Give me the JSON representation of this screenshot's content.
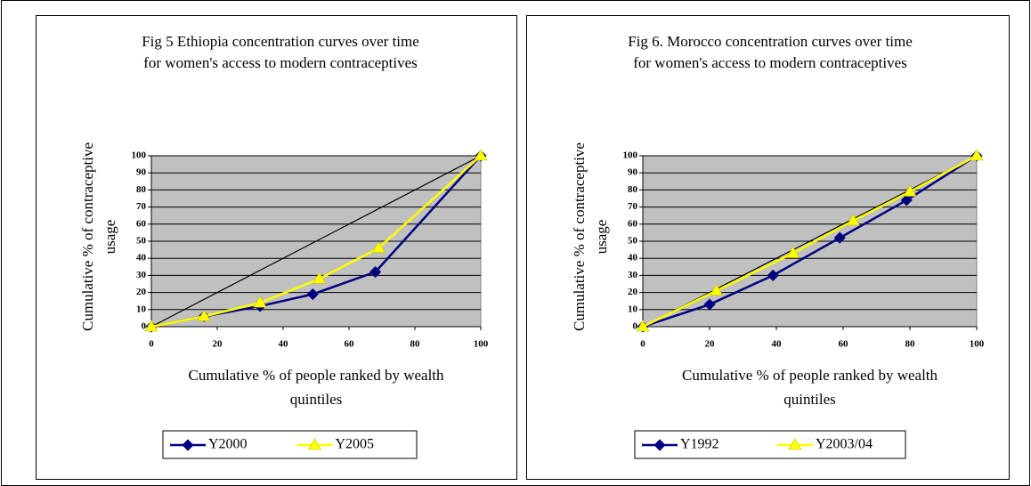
{
  "chart_data": [
    {
      "type": "line",
      "title": [
        "Fig 5 Ethiopia concentration curves over time",
        "for women's access to modern contraceptives"
      ],
      "x_label": [
        "Cumulative % of people ranked by wealth",
        "quintiles"
      ],
      "y_label": [
        "Cumulative % of contraceptive",
        "usage"
      ],
      "xlim": [
        0,
        100
      ],
      "ylim": [
        0,
        100
      ],
      "xticks": [
        0,
        20,
        40,
        60,
        80,
        100
      ],
      "yticks": [
        0,
        10,
        20,
        30,
        40,
        50,
        60,
        70,
        80,
        90,
        100
      ],
      "grid": true,
      "equality_line": true,
      "legend": "bottom",
      "series": [
        {
          "name": "Y2000",
          "color": "#000080",
          "marker": "diamond",
          "x": [
            0,
            16,
            33,
            49,
            68,
            100
          ],
          "values": [
            0,
            6,
            12,
            19,
            32,
            100
          ]
        },
        {
          "name": "Y2005",
          "color": "#ffff00",
          "marker": "triangle",
          "x": [
            0,
            16,
            33,
            51,
            69,
            100
          ],
          "values": [
            0,
            6,
            14,
            28,
            46,
            100
          ]
        }
      ]
    },
    {
      "type": "line",
      "title": [
        "Fig 6. Morocco concentration curves over time",
        "for women's access to modern contraceptives"
      ],
      "x_label": [
        "Cumulative % of people ranked by wealth",
        "quintiles"
      ],
      "y_label": [
        "Cumulative % of contraceptive",
        "usage"
      ],
      "xlim": [
        0,
        100
      ],
      "ylim": [
        0,
        100
      ],
      "xticks": [
        0,
        20,
        40,
        60,
        80,
        100
      ],
      "yticks": [
        0,
        10,
        20,
        30,
        40,
        50,
        60,
        70,
        80,
        90,
        100
      ],
      "grid": true,
      "equality_line": true,
      "legend": "bottom",
      "series": [
        {
          "name": "Y1992",
          "color": "#000080",
          "marker": "diamond",
          "x": [
            0,
            20,
            39,
            59,
            79,
            100
          ],
          "values": [
            0,
            13,
            30,
            52,
            74,
            100
          ]
        },
        {
          "name": "Y2003/04",
          "color": "#ffff00",
          "marker": "triangle",
          "x": [
            0,
            22,
            45,
            63,
            80,
            100
          ],
          "values": [
            0,
            21,
            43,
            62,
            79,
            100
          ]
        }
      ]
    }
  ]
}
